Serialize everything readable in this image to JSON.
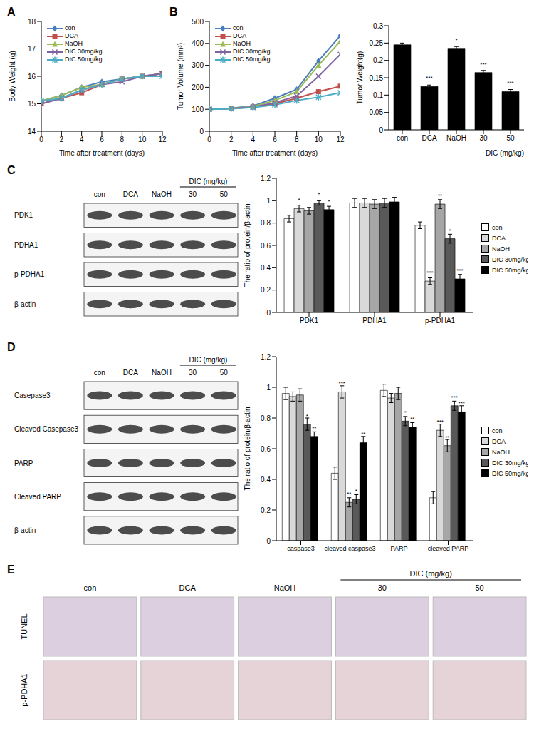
{
  "chart_data": [
    {
      "type": "line",
      "title": "A",
      "x_label": "Time after treatment (days)",
      "y_label": "Body Weight (g)",
      "x": [
        0,
        2,
        4,
        6,
        8,
        10,
        12
      ],
      "xlim": [
        0,
        12
      ],
      "xticks": [
        0,
        2,
        4,
        6,
        8,
        10,
        12
      ],
      "ylim": [
        14,
        18
      ],
      "yticks": [
        14,
        15,
        16,
        17,
        18
      ],
      "grid": false,
      "legend": "upper left",
      "series": [
        {
          "name": "con",
          "color": "#4a7ebb",
          "marker": "diamond",
          "values": [
            15.1,
            15.3,
            15.6,
            15.8,
            15.9,
            16.0,
            16.1
          ]
        },
        {
          "name": "DCA",
          "color": "#c0504d",
          "marker": "square",
          "values": [
            15.0,
            15.2,
            15.4,
            15.7,
            15.9,
            16.0,
            16.1
          ]
        },
        {
          "name": "NaOH",
          "color": "#9bbb59",
          "marker": "triangle",
          "values": [
            15.1,
            15.3,
            15.6,
            15.7,
            15.9,
            16.0,
            16.1
          ]
        },
        {
          "name": "DIC 30mg/kg",
          "color": "#8064a2",
          "marker": "x",
          "values": [
            15.0,
            15.2,
            15.5,
            15.7,
            15.8,
            16.0,
            16.1
          ]
        },
        {
          "name": "DIC 50mg/kg",
          "color": "#4bacc6",
          "marker": "star",
          "values": [
            15.1,
            15.2,
            15.5,
            15.7,
            15.9,
            16.0,
            16.0
          ]
        }
      ]
    },
    {
      "type": "line",
      "title": "B",
      "x_label": "Time after treatment (days)",
      "y_label": "Tumor Volume (mm³)",
      "x": [
        0,
        2,
        4,
        6,
        8,
        10,
        12
      ],
      "xlim": [
        0,
        12
      ],
      "xticks": [
        0,
        2,
        4,
        6,
        8,
        10,
        12
      ],
      "ylim": [
        0,
        500
      ],
      "yticks": [
        0,
        100,
        200,
        300,
        400,
        500
      ],
      "grid": false,
      "legend": "upper left",
      "series": [
        {
          "name": "con",
          "color": "#4a7ebb",
          "marker": "diamond",
          "values": [
            100,
            105,
            115,
            150,
            190,
            320,
            435
          ]
        },
        {
          "name": "DCA",
          "color": "#c0504d",
          "marker": "square",
          "values": [
            100,
            103,
            110,
            125,
            150,
            180,
            205
          ]
        },
        {
          "name": "NaOH",
          "color": "#9bbb59",
          "marker": "triangle",
          "values": [
            100,
            105,
            112,
            140,
            180,
            300,
            410
          ]
        },
        {
          "name": "DIC 30mg/kg",
          "color": "#8064a2",
          "marker": "x",
          "values": [
            100,
            104,
            110,
            130,
            160,
            250,
            350
          ]
        },
        {
          "name": "DIC 50mg/kg",
          "color": "#4bacc6",
          "marker": "star",
          "values": [
            100,
            102,
            108,
            120,
            140,
            155,
            175
          ]
        }
      ]
    },
    {
      "type": "bar",
      "y_label": "Tumor Weight(g)",
      "x_label": "DIC (mg/kg)",
      "categories": [
        "con",
        "DCA",
        "NaOH",
        "30",
        "50"
      ],
      "values": [
        0.245,
        0.125,
        0.235,
        0.165,
        0.11
      ],
      "errors": [
        0.005,
        0.004,
        0.005,
        0.006,
        0.006
      ],
      "significance": [
        null,
        "***",
        "*",
        "***",
        "***"
      ],
      "color": "#000000",
      "ylim": [
        0,
        0.3
      ],
      "yticks": [
        0,
        0.05,
        0.1,
        0.15,
        0.2,
        0.25,
        0.3
      ],
      "grid": false
    },
    {
      "type": "bar",
      "y_label": "The ratio of protein/β-actin",
      "categories": [
        "PDK1",
        "PDHA1",
        "p-PDHA1"
      ],
      "ylim": [
        0,
        1.2
      ],
      "yticks": [
        0,
        0.2,
        0.4,
        0.6,
        0.8,
        1,
        1.2
      ],
      "grid": false,
      "legend": "right",
      "series": [
        {
          "name": "con",
          "color": "#ffffff",
          "values": [
            0.84,
            0.98,
            0.78
          ],
          "errors": [
            0.03,
            0.04,
            0.03
          ],
          "significance": [
            null,
            null,
            null
          ]
        },
        {
          "name": "DCA",
          "color": "#d9d9d9",
          "values": [
            0.93,
            0.98,
            0.28
          ],
          "errors": [
            0.03,
            0.04,
            0.03
          ],
          "significance": [
            "*",
            null,
            "***"
          ]
        },
        {
          "name": "NaOH",
          "color": "#a6a6a6",
          "values": [
            0.91,
            0.97,
            0.97
          ],
          "errors": [
            0.03,
            0.04,
            0.04
          ],
          "significance": [
            null,
            null,
            "**"
          ]
        },
        {
          "name": "DIC 30mg/kg",
          "color": "#595959",
          "values": [
            0.98,
            0.98,
            0.66
          ],
          "errors": [
            0.02,
            0.04,
            0.04
          ],
          "significance": [
            "*",
            null,
            "*"
          ]
        },
        {
          "name": "DIC 50mg/kg",
          "color": "#000000",
          "values": [
            0.92,
            0.99,
            0.3
          ],
          "errors": [
            0.03,
            0.04,
            0.04
          ],
          "significance": [
            "*",
            null,
            "***"
          ]
        }
      ]
    },
    {
      "type": "bar",
      "y_label": "The ratio of protein/β-actin",
      "categories": [
        "caspase3",
        "cleaved caspase3",
        "PARP",
        "cleaved PARP"
      ],
      "ylim": [
        0,
        1.2
      ],
      "yticks": [
        0,
        0.2,
        0.4,
        0.6,
        0.8,
        1,
        1.2
      ],
      "grid": false,
      "legend": "right",
      "series": [
        {
          "name": "con",
          "color": "#ffffff",
          "values": [
            0.96,
            0.44,
            0.98,
            0.28
          ],
          "errors": [
            0.04,
            0.04,
            0.04,
            0.04
          ],
          "significance": [
            null,
            null,
            null,
            null
          ]
        },
        {
          "name": "DCA",
          "color": "#d9d9d9",
          "values": [
            0.94,
            0.97,
            0.93,
            0.72
          ],
          "errors": [
            0.03,
            0.04,
            0.03,
            0.04
          ],
          "significance": [
            null,
            "***",
            null,
            "***"
          ]
        },
        {
          "name": "NaOH",
          "color": "#a6a6a6",
          "values": [
            0.95,
            0.25,
            0.96,
            0.62
          ],
          "errors": [
            0.04,
            0.03,
            0.04,
            0.04
          ],
          "significance": [
            null,
            "**",
            null,
            "**"
          ]
        },
        {
          "name": "DIC 30mg/kg",
          "color": "#595959",
          "values": [
            0.76,
            0.27,
            0.78,
            0.88
          ],
          "errors": [
            0.04,
            0.03,
            0.03,
            0.03
          ],
          "significance": [
            "*",
            "*",
            "*",
            "***"
          ]
        },
        {
          "name": "DIC 50mg/kg",
          "color": "#000000",
          "values": [
            0.68,
            0.64,
            0.74,
            0.84
          ],
          "errors": [
            0.03,
            0.04,
            0.03,
            0.04
          ],
          "significance": [
            "**",
            "**",
            "**",
            "***"
          ]
        }
      ]
    }
  ],
  "blots": [
    {
      "panel": "C",
      "group_label": "DIC (mg/kg)",
      "lanes": [
        "con",
        "DCA",
        "NaOH",
        "30",
        "50"
      ],
      "rows": [
        "PDK1",
        "PDHA1",
        "p-PDHA1",
        "β-actin"
      ]
    },
    {
      "panel": "D",
      "group_label": "DIC (mg/kg)",
      "lanes": [
        "con",
        "DCA",
        "NaOH",
        "30",
        "50"
      ],
      "rows": [
        "Casepase3",
        "Cleaved Casepase3",
        "PARP",
        "Cleaved PARP",
        "β-actin"
      ]
    }
  ],
  "histology": {
    "panel": "E",
    "group_label": "DIC (mg/kg)",
    "columns": [
      "con",
      "DCA",
      "NaOH",
      "30",
      "50"
    ],
    "rows": [
      "TUNEL",
      "p-PDHA1"
    ]
  }
}
